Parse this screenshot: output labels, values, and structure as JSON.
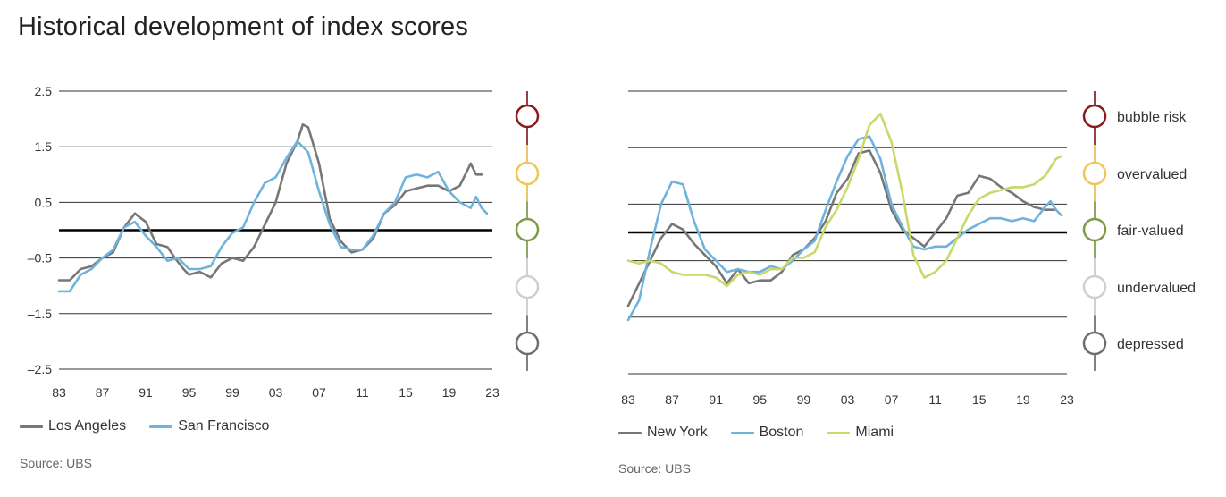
{
  "title": "Historical development of index scores",
  "source": "Source: UBS",
  "colors": {
    "grid": "#333333",
    "zero": "#000000",
    "bubble_risk": "#8b1a1f",
    "overvalued": "#f0c552",
    "fair_valued": "#7e9a48",
    "undervalued": "#cfcfcf",
    "depressed": "#6e6e6e"
  },
  "categories": [
    {
      "key": "bubble_risk",
      "label": "bubble risk"
    },
    {
      "key": "overvalued",
      "label": "overvalued"
    },
    {
      "key": "fair_valued",
      "label": "fair-valued"
    },
    {
      "key": "undervalued",
      "label": "undervalued"
    },
    {
      "key": "depressed",
      "label": "depressed"
    }
  ],
  "chart_data": [
    {
      "type": "line",
      "title": "",
      "xlabel": "",
      "ylabel": "",
      "xlim": [
        1983,
        2023
      ],
      "ylim": [
        -2.5,
        2.5
      ],
      "x_ticks": [
        "83",
        "87",
        "91",
        "95",
        "99",
        "03",
        "07",
        "11",
        "15",
        "19",
        "23"
      ],
      "y_ticks": [
        "2.5",
        "1.5",
        "0.5",
        "–0.5",
        "–1.5",
        "–2.5"
      ],
      "series": [
        {
          "name": "Los Angeles",
          "color": "#777777",
          "points": [
            [
              1983,
              -0.9
            ],
            [
              1984,
              -0.9
            ],
            [
              1985,
              -0.7
            ],
            [
              1986,
              -0.65
            ],
            [
              1987,
              -0.5
            ],
            [
              1988,
              -0.4
            ],
            [
              1989,
              0.05
            ],
            [
              1990,
              0.3
            ],
            [
              1991,
              0.15
            ],
            [
              1992,
              -0.25
            ],
            [
              1993,
              -0.3
            ],
            [
              1993.7,
              -0.5
            ],
            [
              1994.5,
              -0.7
            ],
            [
              1995,
              -0.8
            ],
            [
              1996,
              -0.75
            ],
            [
              1997,
              -0.85
            ],
            [
              1998,
              -0.6
            ],
            [
              1999,
              -0.5
            ],
            [
              2000,
              -0.55
            ],
            [
              2001,
              -0.3
            ],
            [
              2002,
              0.1
            ],
            [
              2003,
              0.5
            ],
            [
              2004,
              1.2
            ],
            [
              2005,
              1.6
            ],
            [
              2005.5,
              1.9
            ],
            [
              2006,
              1.85
            ],
            [
              2007,
              1.2
            ],
            [
              2008,
              0.2
            ],
            [
              2009,
              -0.2
            ],
            [
              2010,
              -0.4
            ],
            [
              2011,
              -0.35
            ],
            [
              2012,
              -0.15
            ],
            [
              2013,
              0.3
            ],
            [
              2014,
              0.45
            ],
            [
              2015,
              0.7
            ],
            [
              2016,
              0.75
            ],
            [
              2017,
              0.8
            ],
            [
              2018,
              0.8
            ],
            [
              2019,
              0.7
            ],
            [
              2020,
              0.8
            ],
            [
              2021,
              1.2
            ],
            [
              2021.5,
              1.0
            ],
            [
              2022,
              1.0
            ]
          ]
        },
        {
          "name": "San Francisco",
          "color": "#6fb3dd",
          "points": [
            [
              1983,
              -1.1
            ],
            [
              1984,
              -1.1
            ],
            [
              1985,
              -0.8
            ],
            [
              1986,
              -0.7
            ],
            [
              1987,
              -0.5
            ],
            [
              1988,
              -0.35
            ],
            [
              1989,
              0.05
            ],
            [
              1990,
              0.15
            ],
            [
              1991,
              -0.1
            ],
            [
              1992,
              -0.3
            ],
            [
              1993,
              -0.55
            ],
            [
              1994,
              -0.5
            ],
            [
              1995,
              -0.7
            ],
            [
              1996,
              -0.7
            ],
            [
              1997,
              -0.65
            ],
            [
              1998,
              -0.3
            ],
            [
              1999,
              -0.05
            ],
            [
              2000,
              0.05
            ],
            [
              2001,
              0.5
            ],
            [
              2002,
              0.85
            ],
            [
              2003,
              0.95
            ],
            [
              2004,
              1.3
            ],
            [
              2005,
              1.6
            ],
            [
              2006,
              1.4
            ],
            [
              2007,
              0.7
            ],
            [
              2008,
              0.1
            ],
            [
              2009,
              -0.3
            ],
            [
              2010,
              -0.35
            ],
            [
              2011,
              -0.35
            ],
            [
              2012,
              -0.1
            ],
            [
              2013,
              0.3
            ],
            [
              2014,
              0.5
            ],
            [
              2015,
              0.95
            ],
            [
              2016,
              1.0
            ],
            [
              2017,
              0.95
            ],
            [
              2018,
              1.05
            ],
            [
              2019,
              0.7
            ],
            [
              2020,
              0.5
            ],
            [
              2021,
              0.4
            ],
            [
              2021.5,
              0.6
            ],
            [
              2022,
              0.4
            ],
            [
              2022.5,
              0.3
            ]
          ]
        }
      ]
    },
    {
      "type": "line",
      "title": "",
      "xlabel": "",
      "ylabel": "",
      "xlim": [
        1983,
        2023
      ],
      "ylim": [
        -2.5,
        2.5
      ],
      "x_ticks": [
        "83",
        "87",
        "91",
        "95",
        "99",
        "03",
        "07",
        "11",
        "15",
        "19",
        "23"
      ],
      "series": [
        {
          "name": "New York",
          "color": "#777777",
          "points": [
            [
              1983,
              -1.3
            ],
            [
              1984,
              -0.9
            ],
            [
              1985,
              -0.5
            ],
            [
              1986,
              -0.1
            ],
            [
              1987,
              0.15
            ],
            [
              1988,
              0.05
            ],
            [
              1989,
              -0.2
            ],
            [
              1990,
              -0.4
            ],
            [
              1991,
              -0.6
            ],
            [
              1992,
              -0.9
            ],
            [
              1993,
              -0.65
            ],
            [
              1994,
              -0.9
            ],
            [
              1995,
              -0.85
            ],
            [
              1996,
              -0.85
            ],
            [
              1997,
              -0.7
            ],
            [
              1998,
              -0.4
            ],
            [
              1999,
              -0.3
            ],
            [
              2000,
              -0.1
            ],
            [
              2001,
              0.2
            ],
            [
              2002,
              0.7
            ],
            [
              2003,
              0.95
            ],
            [
              2004,
              1.4
            ],
            [
              2005,
              1.45
            ],
            [
              2006,
              1.05
            ],
            [
              2007,
              0.4
            ],
            [
              2008,
              0.05
            ],
            [
              2009,
              -0.1
            ],
            [
              2010,
              -0.25
            ],
            [
              2011,
              0.0
            ],
            [
              2012,
              0.25
            ],
            [
              2013,
              0.65
            ],
            [
              2014,
              0.7
            ],
            [
              2015,
              1.0
            ],
            [
              2016,
              0.95
            ],
            [
              2017,
              0.8
            ],
            [
              2018,
              0.7
            ],
            [
              2019,
              0.55
            ],
            [
              2020,
              0.45
            ],
            [
              2021,
              0.4
            ],
            [
              2022,
              0.4
            ]
          ]
        },
        {
          "name": "Boston",
          "color": "#6fb3dd",
          "points": [
            [
              1983,
              -1.55
            ],
            [
              1984,
              -1.2
            ],
            [
              1985,
              -0.3
            ],
            [
              1986,
              0.5
            ],
            [
              1987,
              0.9
            ],
            [
              1988,
              0.85
            ],
            [
              1989,
              0.2
            ],
            [
              1990,
              -0.3
            ],
            [
              1991,
              -0.5
            ],
            [
              1992,
              -0.7
            ],
            [
              1993,
              -0.65
            ],
            [
              1994,
              -0.7
            ],
            [
              1995,
              -0.7
            ],
            [
              1996,
              -0.6
            ],
            [
              1997,
              -0.65
            ],
            [
              1998,
              -0.5
            ],
            [
              1999,
              -0.3
            ],
            [
              2000,
              -0.15
            ],
            [
              2001,
              0.4
            ],
            [
              2002,
              0.9
            ],
            [
              2003,
              1.35
            ],
            [
              2004,
              1.65
            ],
            [
              2005,
              1.7
            ],
            [
              2006,
              1.3
            ],
            [
              2007,
              0.5
            ],
            [
              2008,
              0.1
            ],
            [
              2009,
              -0.25
            ],
            [
              2010,
              -0.3
            ],
            [
              2011,
              -0.25
            ],
            [
              2012,
              -0.25
            ],
            [
              2013,
              -0.1
            ],
            [
              2014,
              0.05
            ],
            [
              2015,
              0.15
            ],
            [
              2016,
              0.25
            ],
            [
              2017,
              0.25
            ],
            [
              2018,
              0.2
            ],
            [
              2019,
              0.25
            ],
            [
              2020,
              0.2
            ],
            [
              2021,
              0.45
            ],
            [
              2021.5,
              0.55
            ],
            [
              2022,
              0.4
            ],
            [
              2022.5,
              0.3
            ]
          ]
        },
        {
          "name": "Miami",
          "color": "#c9d86a",
          "points": [
            [
              1983,
              -0.5
            ],
            [
              1984,
              -0.55
            ],
            [
              1985,
              -0.5
            ],
            [
              1986,
              -0.55
            ],
            [
              1987,
              -0.7
            ],
            [
              1988,
              -0.75
            ],
            [
              1989,
              -0.75
            ],
            [
              1990,
              -0.75
            ],
            [
              1991,
              -0.8
            ],
            [
              1992,
              -0.95
            ],
            [
              1993,
              -0.75
            ],
            [
              1994,
              -0.7
            ],
            [
              1995,
              -0.75
            ],
            [
              1996,
              -0.65
            ],
            [
              1997,
              -0.65
            ],
            [
              1998,
              -0.45
            ],
            [
              1999,
              -0.45
            ],
            [
              2000,
              -0.35
            ],
            [
              2001,
              0.1
            ],
            [
              2002,
              0.4
            ],
            [
              2003,
              0.8
            ],
            [
              2004,
              1.3
            ],
            [
              2005,
              1.9
            ],
            [
              2006,
              2.1
            ],
            [
              2007,
              1.6
            ],
            [
              2008,
              0.7
            ],
            [
              2009,
              -0.4
            ],
            [
              2010,
              -0.8
            ],
            [
              2011,
              -0.7
            ],
            [
              2012,
              -0.5
            ],
            [
              2013,
              -0.1
            ],
            [
              2014,
              0.3
            ],
            [
              2015,
              0.6
            ],
            [
              2016,
              0.7
            ],
            [
              2017,
              0.75
            ],
            [
              2018,
              0.8
            ],
            [
              2019,
              0.8
            ],
            [
              2020,
              0.85
            ],
            [
              2021,
              1.0
            ],
            [
              2022,
              1.3
            ],
            [
              2022.5,
              1.35
            ]
          ]
        }
      ]
    }
  ]
}
